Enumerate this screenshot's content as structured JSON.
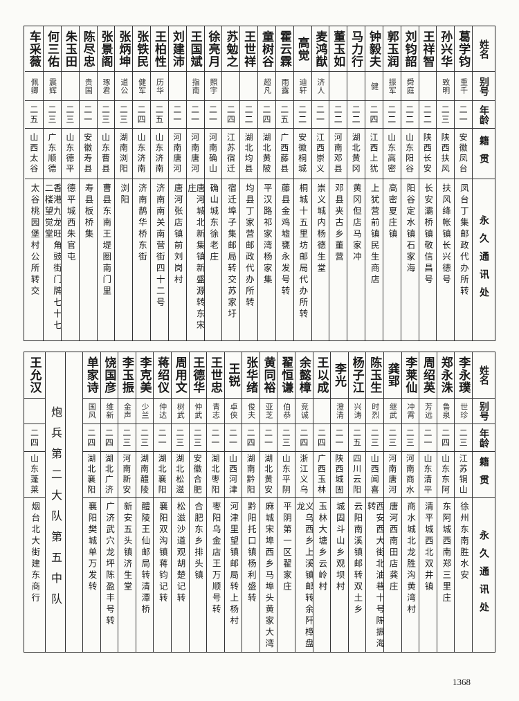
{
  "headers": {
    "name": "姓名",
    "alias": "别号",
    "age": "年龄",
    "origin": "籍贯",
    "address": "永久通讯处"
  },
  "top": {
    "rows": [
      {
        "name": "葛学钧",
        "alias": "重千",
        "age": "二一",
        "origin": "安徽凤台",
        "address": "凤台丁集邮政代办所转"
      },
      {
        "name": "孙兴华",
        "alias": "致明",
        "age": "二三",
        "origin": "陕西扶风",
        "address": "扶风绛帐镇长兴德号"
      },
      {
        "name": "王祥智",
        "alias": "",
        "age": "二二",
        "origin": "陕西长安",
        "address": "长安灞桥镇敬信昌号"
      },
      {
        "name": "刘钧韶",
        "alias": "舜庭",
        "age": "二二",
        "origin": "山东阳谷",
        "address": "阳谷定水镇石家海"
      },
      {
        "name": "郭玉润",
        "alias": "振军",
        "age": "二二",
        "origin": "山东高密",
        "address": "高密夏庄镇"
      },
      {
        "name": "钟毅夫",
        "alias": "健",
        "age": "二四",
        "origin": "江西上犹",
        "address": "上犹营前镇民生商店"
      },
      {
        "name": "马力行",
        "alias": "",
        "age": "二二",
        "origin": "湖北黄冈",
        "address": "黄冈但店马家冲"
      },
      {
        "name": "董玉如",
        "alias": "",
        "age": "二二",
        "origin": "河南邓县",
        "address": "邓县夹古乡董营"
      },
      {
        "name": "麦鸿猷",
        "alias": "济人",
        "age": "二一",
        "origin": "江西崇义",
        "address": "崇义城内杨德生堂"
      },
      {
        "name": "高觉",
        "alias": "迪轩",
        "age": "二二",
        "origin": "安徽桐城",
        "address": "桐城十五里坊邮局代办所转"
      },
      {
        "name": "霍云霖",
        "alias": "雨露",
        "age": "二五",
        "origin": "广西藤县",
        "address": "藤县金鸡墟甕永发号转"
      },
      {
        "name": "童树谷",
        "alias": "超凡",
        "age": "二四",
        "origin": "湖北黄陂",
        "address": "平汉路祁家湾杨家集"
      },
      {
        "name": "王世祥",
        "alias": "",
        "age": "二二",
        "origin": "湖北均县",
        "address": "均县丁家营邮政代办所转"
      },
      {
        "name": "苏勉之",
        "alias": "",
        "age": "二四",
        "origin": "江苏宿迁",
        "address": "宿迁埠子集邮局转交苏家圩"
      },
      {
        "name": "徐亮月",
        "alias": "照宇",
        "age": "二一",
        "origin": "河南确山",
        "address": "确山城东徐老庄"
      },
      {
        "name": "王国斌",
        "alias": "指南",
        "age": "二一",
        "origin": "河南唐河",
        "address": "唐河城北新集镇新盛源转东宋庄"
      },
      {
        "name": "刘建沛",
        "alias": "",
        "age": "二一",
        "origin": "河南唐河",
        "address": "唐河张店镇前刘岗村"
      },
      {
        "name": "王柏性",
        "alias": "历华",
        "age": "二五",
        "origin": "山东济南",
        "address": "济南南关南营街四十二号"
      },
      {
        "name": "张铁民",
        "alias": "健军",
        "age": "二四",
        "origin": "山东济南",
        "address": "济南鹊华桥东街"
      },
      {
        "name": "张炳坤",
        "alias": "道公",
        "age": "二三",
        "origin": "湖南浏阳",
        "address": "浏阳"
      },
      {
        "name": "张景阁",
        "alias": "琢君",
        "age": "二三",
        "origin": "山东曹县",
        "address": "曹县东南王堤圈南门里"
      },
      {
        "name": "陈尽忠",
        "alias": "贵国",
        "age": "二一",
        "origin": "安徽寿县",
        "address": "寿县板桥集"
      },
      {
        "name": "朱玉田",
        "alias": "",
        "age": "二三",
        "origin": "山东德平",
        "address": "德平城西朱官屯"
      },
      {
        "name": "何三佑",
        "alias": "震辉",
        "age": "二三",
        "origin": "广东顺德",
        "address": "香港九龙旺角豉街门牌七十七二楼望觉堂"
      },
      {
        "name": "车采薇",
        "alias": "佩卿",
        "age": "二五",
        "origin": "山西太谷",
        "address": "太谷桃园堡村公所转交"
      }
    ]
  },
  "bottom": {
    "rows": [
      {
        "name": "李永璞",
        "alias": "世珍",
        "age": "二三",
        "origin": "江苏铜山",
        "address": "徐州东南胜水安"
      },
      {
        "name": "郑永洙",
        "alias": "鲁泉",
        "age": "二四",
        "origin": "山东东阿",
        "address": "东阿城西南郑三里庄"
      },
      {
        "name": "周绍英",
        "alias": "芳远",
        "age": "二一",
        "origin": "山东清平",
        "address": "清平城西北双井镇"
      },
      {
        "name": "李莱仙",
        "alias": "冲霄",
        "age": "二三",
        "origin": "河南商水",
        "address": "商水城北龙胜沟黄湾村"
      },
      {
        "name": "龚郢",
        "alias": "继武",
        "age": "二三",
        "origin": "河南唐河",
        "address": "唐河西南田店龚庄"
      },
      {
        "name": "陈玉生",
        "alias": "时烈",
        "age": "二三",
        "origin": "山西闻喜",
        "address": "西安西大街北油巷十号陈振海转"
      },
      {
        "name": "杨子江",
        "alias": "兴涛",
        "age": "二五",
        "origin": "四川云阳",
        "address": "云阳南溪镇邮转双土乡"
      },
      {
        "name": "李光",
        "alias": "澄清",
        "age": "二一",
        "origin": "陕西城固",
        "address": "城固斗山乡观坝村"
      },
      {
        "name": "王以成",
        "alias": "",
        "age": "二四",
        "origin": "广西玉林",
        "address": "玉林大塘乡云岭村"
      },
      {
        "name": "余懿樟",
        "alias": "竞诚",
        "age": "二四",
        "origin": "浙江义乌",
        "address": "义乌西乡上溪镇邮转余阡樟盘龙"
      },
      {
        "name": "翟恒谦",
        "alias": "伯恭",
        "age": "二三",
        "origin": "山东平阴",
        "address": "平阴第一区翟家庄"
      },
      {
        "name": "黄同裕",
        "alias": "亚芝",
        "age": "二一",
        "origin": "湖北黄安",
        "address": "麻城宋埠西乡马埠头黄家大湾"
      },
      {
        "name": "张华绪",
        "alias": "俊夫",
        "age": "二四",
        "origin": "湖南黔阳",
        "address": "黔阳托口镇杨利盛转"
      },
      {
        "name": "王锐",
        "alias": "卓侠",
        "age": "二一",
        "origin": "山西河津",
        "address": "河津里望镇邮局转上杨村"
      },
      {
        "name": "王世忠",
        "alias": "青志",
        "age": "二一",
        "origin": "湖北枣阳",
        "address": "枣阳乌金店王万顺号转"
      },
      {
        "name": "王德华",
        "alias": "仲武",
        "age": "二三",
        "origin": "安徽合肥",
        "address": "合肥东乡排头镇"
      },
      {
        "name": "周用文",
        "alias": "树武",
        "age": "二三",
        "origin": "湖北松滋",
        "address": "松滋沙道观胡楚记转"
      },
      {
        "name": "蒋绍仪",
        "alias": "仲达",
        "age": "二一",
        "origin": "湖北襄阳",
        "address": "襄阳双沟镇蒋钧记转"
      },
      {
        "name": "李克美",
        "alias": "少兰",
        "age": "二三",
        "origin": "湖南醴陵",
        "address": "醴陵王仙邮局转清潭桥"
      },
      {
        "name": "李玉振",
        "alias": "金声",
        "age": "二三",
        "origin": "河南新安",
        "address": "新安五头镇济生堂"
      },
      {
        "name": "饶国彦",
        "alias": "维新",
        "age": "二四",
        "origin": "湖北广济",
        "address": "广济武穴龙坪陈盈丰号转"
      },
      {
        "name": "单家诗",
        "alias": "国风",
        "age": "二四",
        "origin": "湖北襄阳",
        "address": "襄阳樊城单万发转"
      }
    ],
    "unit_label": "炮兵第二大队第五中队",
    "unit_rows": [
      {
        "name": "王允汉",
        "alias": "",
        "age": "二四",
        "origin": "山东蓬莱",
        "address": "烟台北大街建东商行"
      }
    ]
  },
  "page_number": "1368"
}
